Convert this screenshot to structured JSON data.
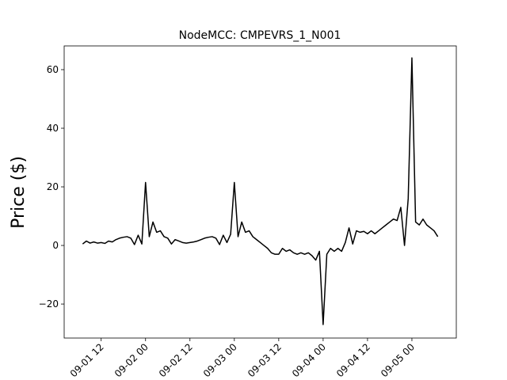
{
  "chart_data": {
    "type": "line",
    "title": "NodeMCC: CMPEVRS_1_N001",
    "y_label": "Price ($)",
    "x": [
      "09-01 07",
      "09-01 08",
      "09-01 09",
      "09-01 10",
      "09-01 11",
      "09-01 12",
      "09-01 13",
      "09-01 14",
      "09-01 15",
      "09-01 16",
      "09-01 17",
      "09-01 18",
      "09-01 19",
      "09-01 20",
      "09-01 21",
      "09-01 22",
      "09-01 23",
      "09-02 00",
      "09-02 01",
      "09-02 02",
      "09-02 03",
      "09-02 04",
      "09-02 05",
      "09-02 06",
      "09-02 07",
      "09-02 08",
      "09-02 09",
      "09-02 10",
      "09-02 11",
      "09-02 12",
      "09-02 13",
      "09-02 14",
      "09-02 15",
      "09-02 16",
      "09-02 17",
      "09-02 18",
      "09-02 19",
      "09-02 20",
      "09-02 21",
      "09-02 22",
      "09-02 23",
      "09-03 00",
      "09-03 01",
      "09-03 02",
      "09-03 03",
      "09-03 04",
      "09-03 05",
      "09-03 06",
      "09-03 07",
      "09-03 08",
      "09-03 09",
      "09-03 10",
      "09-03 11",
      "09-03 12",
      "09-03 13",
      "09-03 14",
      "09-03 15",
      "09-03 16",
      "09-03 17",
      "09-03 18",
      "09-03 19",
      "09-03 20",
      "09-03 21",
      "09-03 22",
      "09-03 23",
      "09-04 00",
      "09-04 01",
      "09-04 02",
      "09-04 03",
      "09-04 04",
      "09-04 05",
      "09-04 06",
      "09-04 07",
      "09-04 08",
      "09-04 09",
      "09-04 10",
      "09-04 11",
      "09-04 12",
      "09-04 13",
      "09-04 14",
      "09-04 15",
      "09-04 16",
      "09-04 17",
      "09-04 18",
      "09-04 19",
      "09-04 20",
      "09-04 21",
      "09-04 22",
      "09-04 23",
      "09-05 00",
      "09-05 01",
      "09-05 02",
      "09-05 03",
      "09-05 04",
      "09-05 05",
      "09-05 06",
      "09-05 07"
    ],
    "series": [
      {
        "name": "CMPEVRS_1_N001",
        "color": "#000000",
        "values": [
          0.5,
          1.5,
          0.8,
          1.2,
          0.8,
          1,
          0.7,
          1.5,
          1.2,
          2,
          2.5,
          2.8,
          3,
          2.5,
          0.3,
          3.5,
          0.5,
          21.5,
          3,
          8,
          4.5,
          5,
          3,
          2.5,
          0.5,
          2,
          1.5,
          1,
          0.8,
          1,
          1.2,
          1.5,
          2,
          2.5,
          2.8,
          3,
          2.5,
          0.3,
          3.5,
          1,
          3.8,
          21.5,
          3,
          8,
          4.5,
          5,
          3,
          2,
          1,
          0,
          -1,
          -2.5,
          -3,
          -3,
          -1,
          -2,
          -1.5,
          -2.5,
          -3,
          -2.5,
          -3,
          -2.5,
          -3.5,
          -5,
          -2,
          -27,
          -3,
          -1,
          -2,
          -1,
          -2,
          1,
          6,
          0.5,
          5,
          4.5,
          4.8,
          4,
          5,
          4,
          5,
          6,
          7,
          8,
          9,
          8.5,
          13,
          0,
          16,
          64,
          8,
          7,
          9,
          7,
          6,
          5,
          3
        ]
      }
    ],
    "xlim": [
      "09-01 02",
      "09-05 12"
    ],
    "xticks": [
      "09-01 12",
      "09-02 00",
      "09-02 12",
      "09-03 00",
      "09-03 12",
      "09-04 00",
      "09-04 12",
      "09-05 00"
    ],
    "ylim": [
      -31.6,
      68.1
    ],
    "yticks": [
      {
        "value": -20,
        "label": "−20"
      },
      0,
      20,
      40,
      60
    ]
  }
}
